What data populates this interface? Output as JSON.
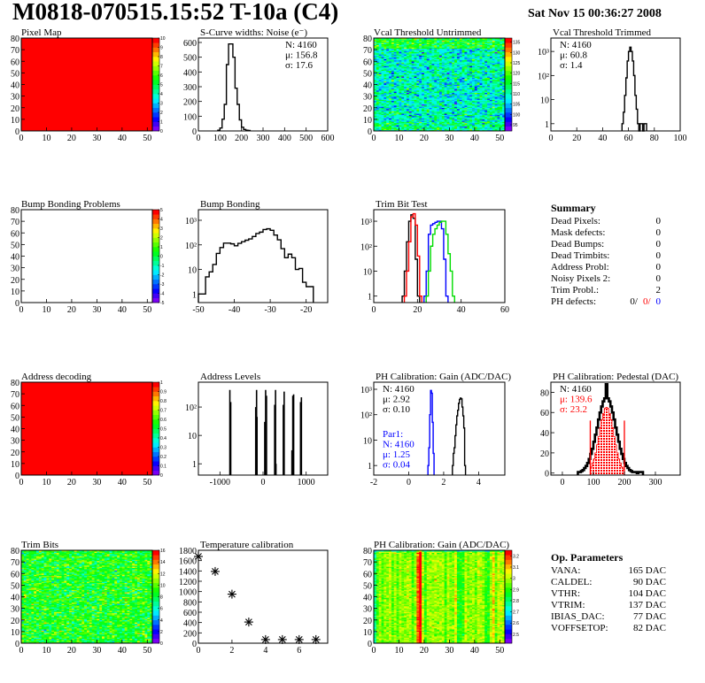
{
  "header": {
    "title": "M0818-070515.15:52 T-10a (C4)",
    "date": "Sat Nov 15 00:36:27 2008"
  },
  "summary": {
    "heading": "Summary",
    "rows": [
      {
        "label": "Dead Pixels:",
        "value": "0"
      },
      {
        "label": "Mask defects:",
        "value": "0"
      },
      {
        "label": "Dead Bumps:",
        "value": "0"
      },
      {
        "label": "Dead Trimbits:",
        "value": "0"
      },
      {
        "label": "Address Probl:",
        "value": "0"
      },
      {
        "label": "Noisy Pixels 2:",
        "value": "0"
      },
      {
        "label": "Trim Probl.:",
        "value": "2"
      }
    ],
    "ph_defects": {
      "label": "PH defects:",
      "values": [
        {
          "text": "0/",
          "color": "#000000"
        },
        {
          "text": "0/",
          "color": "#ff0000"
        },
        {
          "text": "0",
          "color": "#0000ff"
        }
      ]
    }
  },
  "op_parameters": {
    "heading": "Op. Parameters",
    "rows": [
      {
        "label": "VANA:",
        "value": "165 DAC"
      },
      {
        "label": "CALDEL:",
        "value": "90 DAC"
      },
      {
        "label": "VTHR:",
        "value": "104 DAC"
      },
      {
        "label": "VTRIM:",
        "value": "137 DAC"
      },
      {
        "label": "IBIAS_DAC:",
        "value": "77 DAC"
      },
      {
        "label": "VOFFSETOP:",
        "value": "82 DAC"
      }
    ]
  },
  "chart_data": [
    {
      "id": "pixel_map",
      "type": "heatmap",
      "title": "Pixel Map",
      "xlim": [
        0,
        52
      ],
      "ylim": [
        0,
        80
      ],
      "xticks": [
        0,
        10,
        20,
        30,
        40,
        50
      ],
      "yticks": [
        0,
        10,
        20,
        30,
        40,
        50,
        60,
        70,
        80
      ],
      "zlim": [
        0,
        10
      ],
      "colorbar_ticks": [
        0,
        1,
        2,
        3,
        4,
        5,
        6,
        7,
        8,
        9,
        10
      ],
      "uniform_value": 10
    },
    {
      "id": "scurve_noise",
      "type": "histogram",
      "title": "S-Curve widths: Noise (e⁻)",
      "xlim": [
        0,
        600
      ],
      "ylim": [
        0,
        630
      ],
      "yscale": "linear",
      "xticks": [
        0,
        100,
        200,
        300,
        400,
        500,
        600
      ],
      "yticks": [
        0,
        100,
        200,
        300,
        400,
        500,
        600
      ],
      "series": [
        {
          "color": "#000000",
          "start": 90,
          "width": 10,
          "values": [
            5,
            20,
            80,
            180,
            450,
            590,
            590,
            500,
            290,
            180,
            75,
            25,
            10,
            5,
            3
          ]
        }
      ],
      "stats": [
        {
          "text": "N: 4160",
          "color": "#000000"
        },
        {
          "text": "μ: 156.8",
          "color": "#000000"
        },
        {
          "text": "σ: 17.6",
          "color": "#000000"
        }
      ]
    },
    {
      "id": "vcal_untrimmed",
      "type": "heatmap",
      "title": "Vcal Threshold Untrimmed",
      "xlim": [
        0,
        52
      ],
      "ylim": [
        0,
        80
      ],
      "xticks": [
        0,
        10,
        20,
        30,
        40,
        50
      ],
      "yticks": [
        0,
        10,
        20,
        30,
        40,
        50,
        60,
        70,
        80
      ],
      "zlim": [
        92,
        137
      ],
      "colorbar_ticks": [
        95,
        100,
        105,
        110,
        115,
        120,
        125,
        130,
        135
      ]
    },
    {
      "id": "vcal_trimmed",
      "type": "histogram",
      "title": "Vcal Threshold Trimmed",
      "xlim": [
        0,
        100
      ],
      "ylim": [
        0.5,
        3600
      ],
      "yscale": "log",
      "xticks": [
        0,
        20,
        40,
        60,
        80,
        100
      ],
      "yticks": [
        1,
        10,
        100,
        1000
      ],
      "ytick_labels": [
        "1",
        "10",
        "10²",
        "10³"
      ],
      "series": [
        {
          "color": "#000000",
          "start": 55,
          "width": 1,
          "values": [
            1,
            3,
            15,
            80,
            400,
            1000,
            1500,
            1000,
            400,
            100,
            15,
            4,
            1,
            0,
            1,
            1,
            0,
            1,
            1
          ]
        }
      ],
      "stats": [
        {
          "text": "N: 4160",
          "color": "#000000"
        },
        {
          "text": "μ: 60.8",
          "color": "#000000"
        },
        {
          "text": "σ:  1.4",
          "color": "#000000"
        }
      ]
    },
    {
      "id": "bump_problems",
      "type": "heatmap",
      "title": "Bump Bonding Problems",
      "xlim": [
        0,
        52
      ],
      "ylim": [
        0,
        80
      ],
      "xticks": [
        0,
        10,
        20,
        30,
        40,
        50
      ],
      "yticks": [
        0,
        10,
        20,
        30,
        40,
        50,
        60,
        70,
        80
      ],
      "zlim": [
        -5,
        5
      ],
      "colorbar_ticks": [
        -5,
        -4,
        -3,
        -2,
        -1,
        0,
        1,
        2,
        3,
        4,
        5
      ],
      "empty": true
    },
    {
      "id": "bump_bonding",
      "type": "histogram",
      "title": "Bump Bonding",
      "xlim": [
        -50,
        -14
      ],
      "ylim": [
        0.45,
        2700
      ],
      "yscale": "log",
      "xticks": [
        -50,
        -40,
        -30,
        -20
      ],
      "yticks": [
        1,
        10,
        100,
        1000
      ],
      "ytick_labels": [
        "1",
        "10",
        "10²",
        "10³"
      ],
      "series": [
        {
          "color": "#000000",
          "start": -50,
          "width": 1,
          "values": [
            1,
            1,
            5,
            8,
            16,
            45,
            78,
            118,
            118,
            110,
            92,
            115,
            135,
            155,
            175,
            220,
            290,
            330,
            420,
            450,
            390,
            250,
            160,
            70,
            30,
            42,
            30,
            10,
            11,
            3,
            2,
            2
          ]
        }
      ]
    },
    {
      "id": "trim_bit_test",
      "type": "histogram",
      "title": "Trim Bit Test",
      "xlim": [
        0,
        60
      ],
      "ylim": [
        0.55,
        2900
      ],
      "yscale": "log",
      "xticks": [
        0,
        20,
        40,
        60
      ],
      "yticks": [
        1,
        10,
        100,
        1000
      ],
      "ytick_labels": [
        "1",
        "10",
        "10²",
        "10³"
      ],
      "series": [
        {
          "color": "#000000",
          "start": 13,
          "width": 1,
          "values": [
            1,
            10,
            150,
            1000,
            1800,
            1300,
            30,
            1
          ]
        },
        {
          "color": "#ff0000",
          "start": 14,
          "width": 1,
          "values": [
            1,
            10,
            150,
            1500,
            2000,
            700,
            40,
            1
          ]
        },
        {
          "color": "#0000ff",
          "start": 23,
          "width": 1,
          "values": [
            1,
            10,
            300,
            700,
            800,
            900,
            1000,
            1000,
            500,
            30,
            1
          ]
        },
        {
          "color": "#00dd00",
          "start": 24,
          "width": 1,
          "values": [
            1,
            10,
            100,
            300,
            500,
            700,
            900,
            1000,
            1000,
            300,
            50,
            10,
            1
          ]
        }
      ]
    },
    {
      "id": "address_decoding",
      "type": "heatmap",
      "title": "Address decoding",
      "xlim": [
        0,
        52
      ],
      "ylim": [
        0,
        80
      ],
      "xticks": [
        0,
        10,
        20,
        30,
        40,
        50
      ],
      "yticks": [
        0,
        10,
        20,
        30,
        40,
        50,
        60,
        70,
        80
      ],
      "zlim": [
        0,
        1
      ],
      "colorbar_ticks": [
        0,
        0.1,
        0.2,
        0.3,
        0.4,
        0.5,
        0.6,
        0.7,
        0.8,
        0.9,
        1
      ],
      "uniform_value": 1
    },
    {
      "id": "address_levels",
      "type": "spikes",
      "title": "Address Levels",
      "xlim": [
        -1500,
        1500
      ],
      "ylim": [
        0.4,
        750
      ],
      "yscale": "log",
      "xticks": [
        -1000,
        0,
        1000
      ],
      "yticks": [
        1,
        10,
        100
      ],
      "ytick_labels": [
        "1",
        "10",
        "10²"
      ],
      "series": [
        {
          "color": "#000000",
          "points": [
            [
              -770,
              400
            ],
            [
              -750,
              150
            ],
            [
              -170,
              100
            ],
            [
              -150,
              400
            ],
            [
              -140,
              45
            ],
            [
              40,
              30
            ],
            [
              60,
              400
            ],
            [
              80,
              250
            ],
            [
              270,
              120
            ],
            [
              290,
              400
            ],
            [
              300,
              1
            ],
            [
              470,
              120
            ],
            [
              490,
              350
            ],
            [
              670,
              3
            ],
            [
              690,
              250
            ],
            [
              710,
              280
            ],
            [
              870,
              150
            ],
            [
              890,
              220
            ]
          ]
        }
      ]
    },
    {
      "id": "ph_gain",
      "type": "histogram",
      "title": "PH Calibration: Gain (ADC/DAC)",
      "xlim": [
        -2,
        5.5
      ],
      "ylim": [
        0.42,
        1900
      ],
      "yscale": "log",
      "xticks": [
        -2,
        0,
        2,
        4
      ],
      "yticks": [
        1,
        10,
        100,
        1000
      ],
      "ytick_labels": [
        "1",
        "10",
        "10²",
        "10³"
      ],
      "series": [
        {
          "color": "#0000ff",
          "start": 1.1,
          "width": 0.05,
          "values": [
            1,
            5,
            100,
            900,
            700,
            50,
            3
          ]
        },
        {
          "color": "#000000",
          "start": 2.5,
          "width": 0.05,
          "values": [
            1,
            3,
            5,
            15,
            40,
            90,
            150,
            280,
            400,
            450,
            420,
            200,
            90,
            30,
            1
          ]
        }
      ],
      "stats": [
        {
          "text": "N: 4160",
          "color": "#000000"
        },
        {
          "text": "μ: 2.92",
          "color": "#000000"
        },
        {
          "text": "σ: 0.10",
          "color": "#000000"
        }
      ],
      "stats2": [
        {
          "text": "Par1:",
          "color": "#0000ff"
        },
        {
          "text": "N: 4160",
          "color": "#0000ff"
        },
        {
          "text": "μ: 1.25",
          "color": "#0000ff"
        },
        {
          "text": "σ: 0.04",
          "color": "#0000ff"
        }
      ]
    },
    {
      "id": "ph_pedestal",
      "type": "histogram",
      "title": "PH Calibration: Pedestal (DAC)",
      "xlim": [
        -37,
        380
      ],
      "ylim": [
        -2,
        90
      ],
      "yscale": "linear",
      "xticks": [
        0,
        100,
        200,
        300
      ],
      "yticks": [
        0,
        20,
        40,
        60,
        80
      ],
      "series": [
        {
          "color": "#000000",
          "start": 50,
          "width": 5,
          "thick": true,
          "values": [
            1,
            1,
            2,
            3,
            5,
            7,
            10,
            14,
            19,
            24,
            31,
            38,
            45,
            53,
            60,
            66,
            71,
            74,
            88,
            74,
            71,
            66,
            60,
            53,
            45,
            38,
            31,
            24,
            19,
            14,
            10,
            7,
            5,
            3,
            2,
            1,
            1,
            1,
            0,
            1,
            1,
            1
          ]
        },
        {
          "color": "#ff0000",
          "start": 90,
          "width": 5,
          "filled": true,
          "values": [
            6,
            10,
            14,
            20,
            28,
            36,
            45,
            53,
            59,
            64,
            65,
            64,
            59,
            53,
            45,
            36,
            28,
            20,
            14,
            10,
            6,
            4
          ]
        }
      ],
      "cut_lines": {
        "color": "#ff0000",
        "x": [
          90,
          200
        ],
        "height": 52
      },
      "stats": [
        {
          "text": "N: 4160",
          "color": "#000000"
        },
        {
          "text": "μ: 139.6",
          "color": "#ff0000"
        },
        {
          "text": "σ: 23.2",
          "color": "#ff0000"
        }
      ]
    },
    {
      "id": "trim_bits",
      "type": "heatmap",
      "title": "Trim Bits",
      "xlim": [
        0,
        52
      ],
      "ylim": [
        0,
        80
      ],
      "xticks": [
        0,
        10,
        20,
        30,
        40,
        50
      ],
      "yticks": [
        0,
        10,
        20,
        30,
        40,
        50,
        60,
        70,
        80
      ],
      "zlim": [
        0,
        16
      ],
      "colorbar_ticks": [
        0,
        2,
        4,
        6,
        8,
        10,
        12,
        14,
        16
      ]
    },
    {
      "id": "temperature_calibration",
      "type": "scatter",
      "title": "Temperature calibration",
      "xlim": [
        0,
        7.7
      ],
      "ylim": [
        0,
        1800
      ],
      "yscale": "linear",
      "xticks": [
        0,
        2,
        4,
        6
      ],
      "yticks": [
        0,
        200,
        400,
        600,
        800,
        1000,
        1200,
        1400,
        1600,
        1800
      ],
      "series": [
        {
          "color": "#000000",
          "marker": "star",
          "points": [
            [
              0,
              1680
            ],
            [
              1,
              1390
            ],
            [
              2,
              950
            ],
            [
              3,
              410
            ],
            [
              4,
              70
            ],
            [
              5,
              70
            ],
            [
              6,
              70
            ],
            [
              7,
              70
            ]
          ]
        }
      ]
    },
    {
      "id": "ph_gain_map",
      "type": "heatmap",
      "title": "PH Calibration: Gain (ADC/DAC)",
      "xlim": [
        0,
        52
      ],
      "ylim": [
        0,
        80
      ],
      "xticks": [
        0,
        10,
        20,
        30,
        40,
        50
      ],
      "yticks": [
        0,
        10,
        20,
        30,
        40,
        50,
        60,
        70,
        80
      ],
      "zlim": [
        2.42,
        3.25
      ],
      "colorbar_ticks": [
        2.5,
        2.6,
        2.7,
        2.8,
        2.9,
        3,
        3.1,
        3.2
      ]
    }
  ]
}
